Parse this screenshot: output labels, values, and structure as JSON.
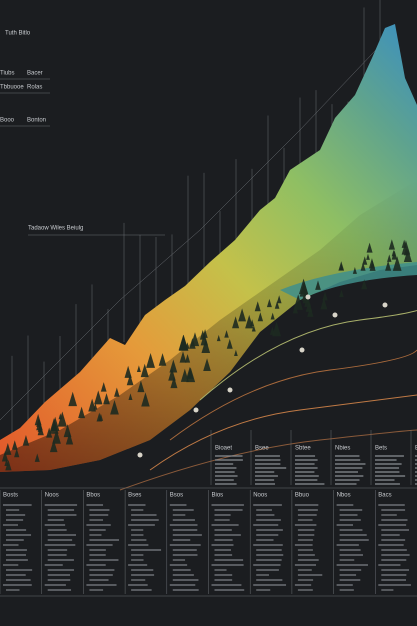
{
  "header": {
    "title": "Tuth Bitlo"
  },
  "legend": [
    {
      "label": "Tiubs",
      "value": "Bacer"
    },
    {
      "label": "Tbbuooe",
      "value": "Rolas"
    },
    {
      "label": "Booo",
      "value": "Bonton"
    }
  ],
  "annotation": "Tadaow Wiles Beiulg",
  "middle_headers": [
    "Bioaet",
    "Bsee",
    "Sbtee",
    "Nbies",
    "Bets",
    "Bitte"
  ],
  "columns": [
    "Bosts",
    "Noos",
    "Bbos",
    "Bses",
    "Bsos",
    "Bios",
    "Noos",
    "Bbuo",
    "Nbos",
    "Bacs"
  ]
}
